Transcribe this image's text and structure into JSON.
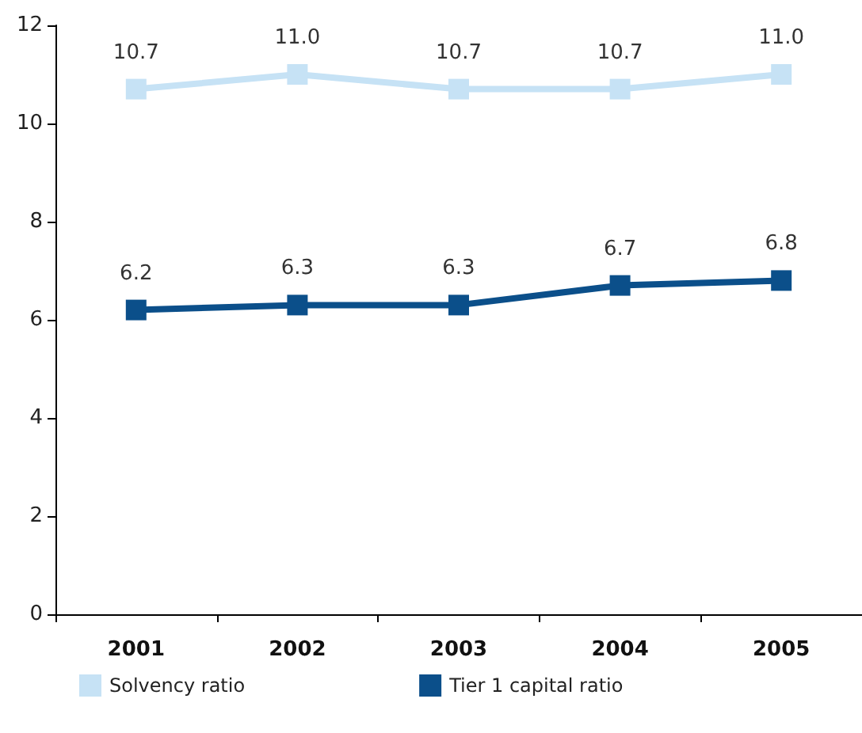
{
  "chart_data": {
    "type": "line",
    "categories": [
      "2001",
      "2002",
      "2003",
      "2004",
      "2005"
    ],
    "series": [
      {
        "name": "Solvency ratio",
        "color": "#c6e2f5",
        "values": [
          10.7,
          11.0,
          10.7,
          10.7,
          11.0
        ],
        "value_labels": [
          "10.7",
          "11.0",
          "10.7",
          "10.7",
          "11.0"
        ]
      },
      {
        "name": "Tier 1 capital ratio",
        "color": "#0b4f8a",
        "values": [
          6.2,
          6.3,
          6.3,
          6.7,
          6.8
        ],
        "value_labels": [
          "6.2",
          "6.3",
          "6.3",
          "6.7",
          "6.8"
        ]
      }
    ],
    "ylim": [
      0,
      12
    ],
    "yticks": [
      0,
      2,
      4,
      6,
      8,
      10,
      12
    ],
    "marker": "square",
    "legend": "bottom left",
    "grid": false,
    "line_style": "solid"
  }
}
